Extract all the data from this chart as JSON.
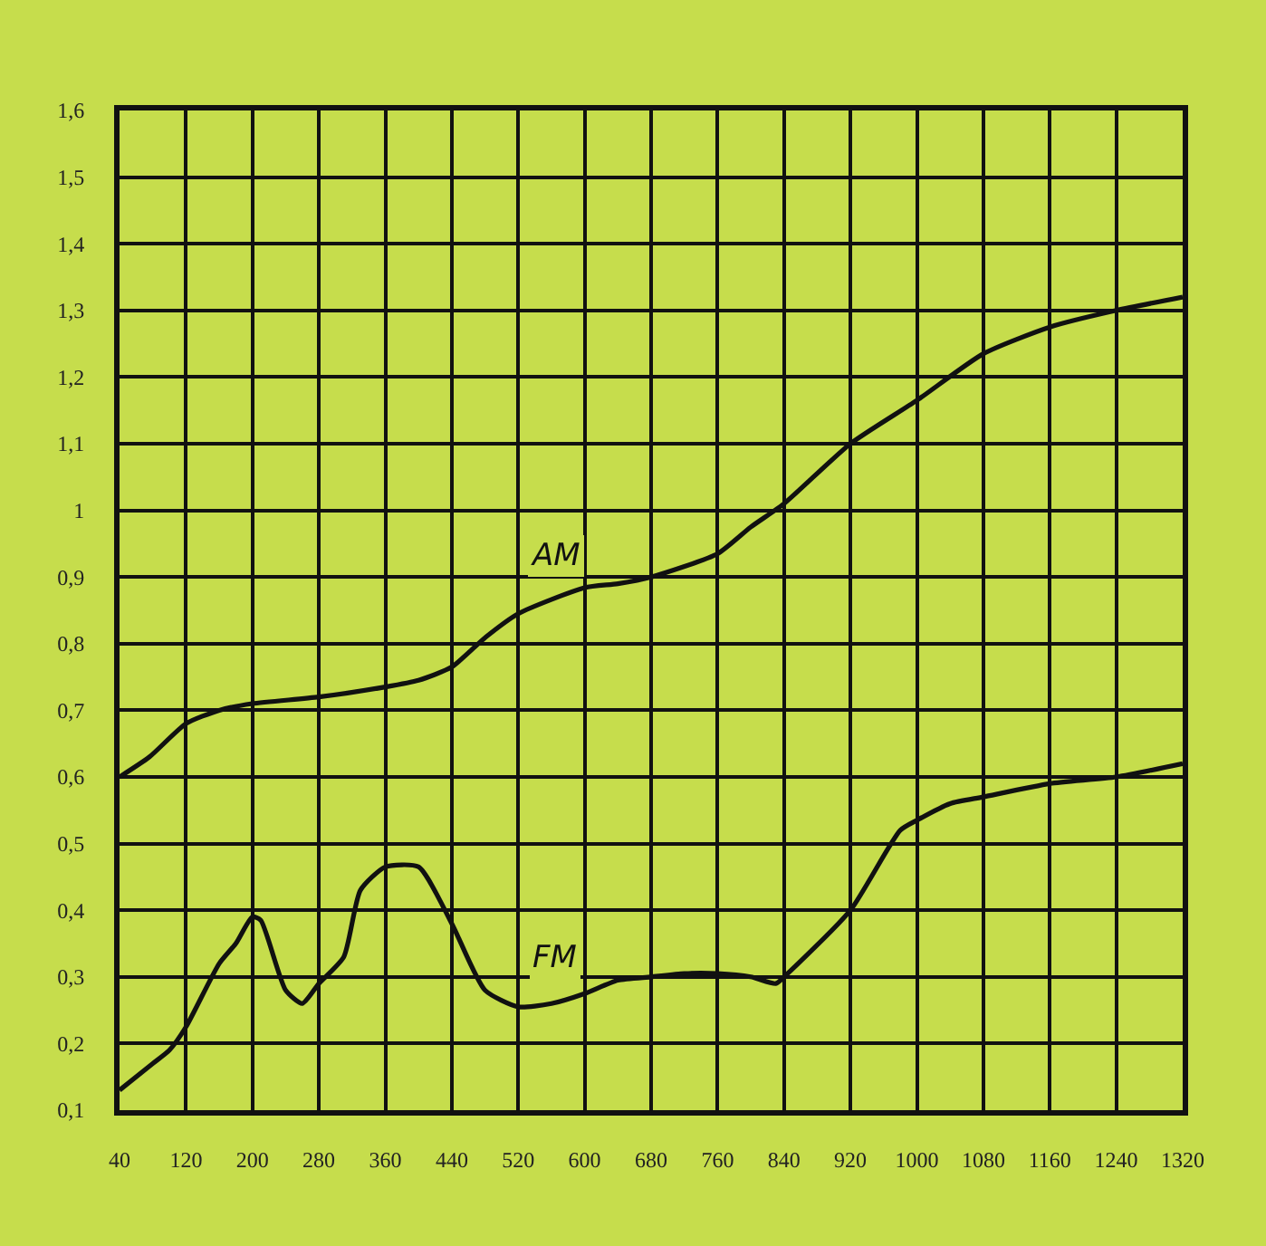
{
  "chart_data": {
    "type": "line",
    "x": [
      40,
      76,
      120,
      160,
      200,
      280,
      360,
      400,
      440,
      481,
      520,
      600,
      640,
      680,
      760,
      800,
      840,
      920,
      1000,
      1080,
      1160,
      1240,
      1320
    ],
    "series": [
      {
        "name": "AM",
        "color": "#111111",
        "values": [
          0.6,
          0.63,
          0.68,
          0.7,
          0.71,
          0.72,
          0.735,
          0.745,
          0.765,
          0.81,
          0.845,
          0.884,
          0.89,
          0.9,
          0.935,
          0.975,
          1.01,
          1.1,
          1.165,
          1.235,
          1.275,
          1.3,
          1.32
        ]
      },
      {
        "name": "FM",
        "color": "#111111",
        "x": [
          40,
          80,
          100,
          120,
          160,
          180,
          200,
          210,
          240,
          260,
          280,
          310,
          330,
          360,
          400,
          440,
          480,
          520,
          560,
          600,
          640,
          680,
          720,
          760,
          800,
          830,
          840,
          920,
          980,
          1000,
          1040,
          1080,
          1160,
          1240,
          1320
        ],
        "values": [
          0.13,
          0.17,
          0.19,
          0.225,
          0.32,
          0.35,
          0.39,
          0.385,
          0.28,
          0.26,
          0.29,
          0.33,
          0.43,
          0.465,
          0.465,
          0.38,
          0.28,
          0.255,
          0.26,
          0.275,
          0.295,
          0.3,
          0.305,
          0.305,
          0.3,
          0.29,
          0.3,
          0.4,
          0.52,
          0.535,
          0.56,
          0.57,
          0.59,
          0.6,
          0.62
        ]
      }
    ],
    "xlim": [
      40,
      1320
    ],
    "xticks": [
      40,
      120,
      200,
      280,
      360,
      440,
      520,
      600,
      680,
      760,
      840,
      920,
      1000,
      1080,
      1160,
      1240,
      1320
    ],
    "ylim": [
      0.1,
      1.6
    ],
    "yticks": [
      {
        "value": 0.1,
        "label": "0,1"
      },
      {
        "value": 0.2,
        "label": "0,2"
      },
      {
        "value": 0.3,
        "label": "0,3"
      },
      {
        "value": 0.4,
        "label": "0,4"
      },
      {
        "value": 0.5,
        "label": "0,5"
      },
      {
        "value": 0.6,
        "label": "0,6"
      },
      {
        "value": 0.7,
        "label": "0,7"
      },
      {
        "value": 0.8,
        "label": "0,8"
      },
      {
        "value": 0.9,
        "label": "0,9"
      },
      1,
      {
        "value": 1.1,
        "label": "1,1"
      },
      {
        "value": 1.2,
        "label": "1,2"
      },
      {
        "value": 1.3,
        "label": "1,3"
      },
      {
        "value": 1.4,
        "label": "1,4"
      },
      {
        "value": 1.5,
        "label": "1,5"
      },
      {
        "value": 1.6,
        "label": "1,6"
      }
    ],
    "grid": true,
    "legend": false,
    "marker": "none",
    "line_style": "solid"
  }
}
